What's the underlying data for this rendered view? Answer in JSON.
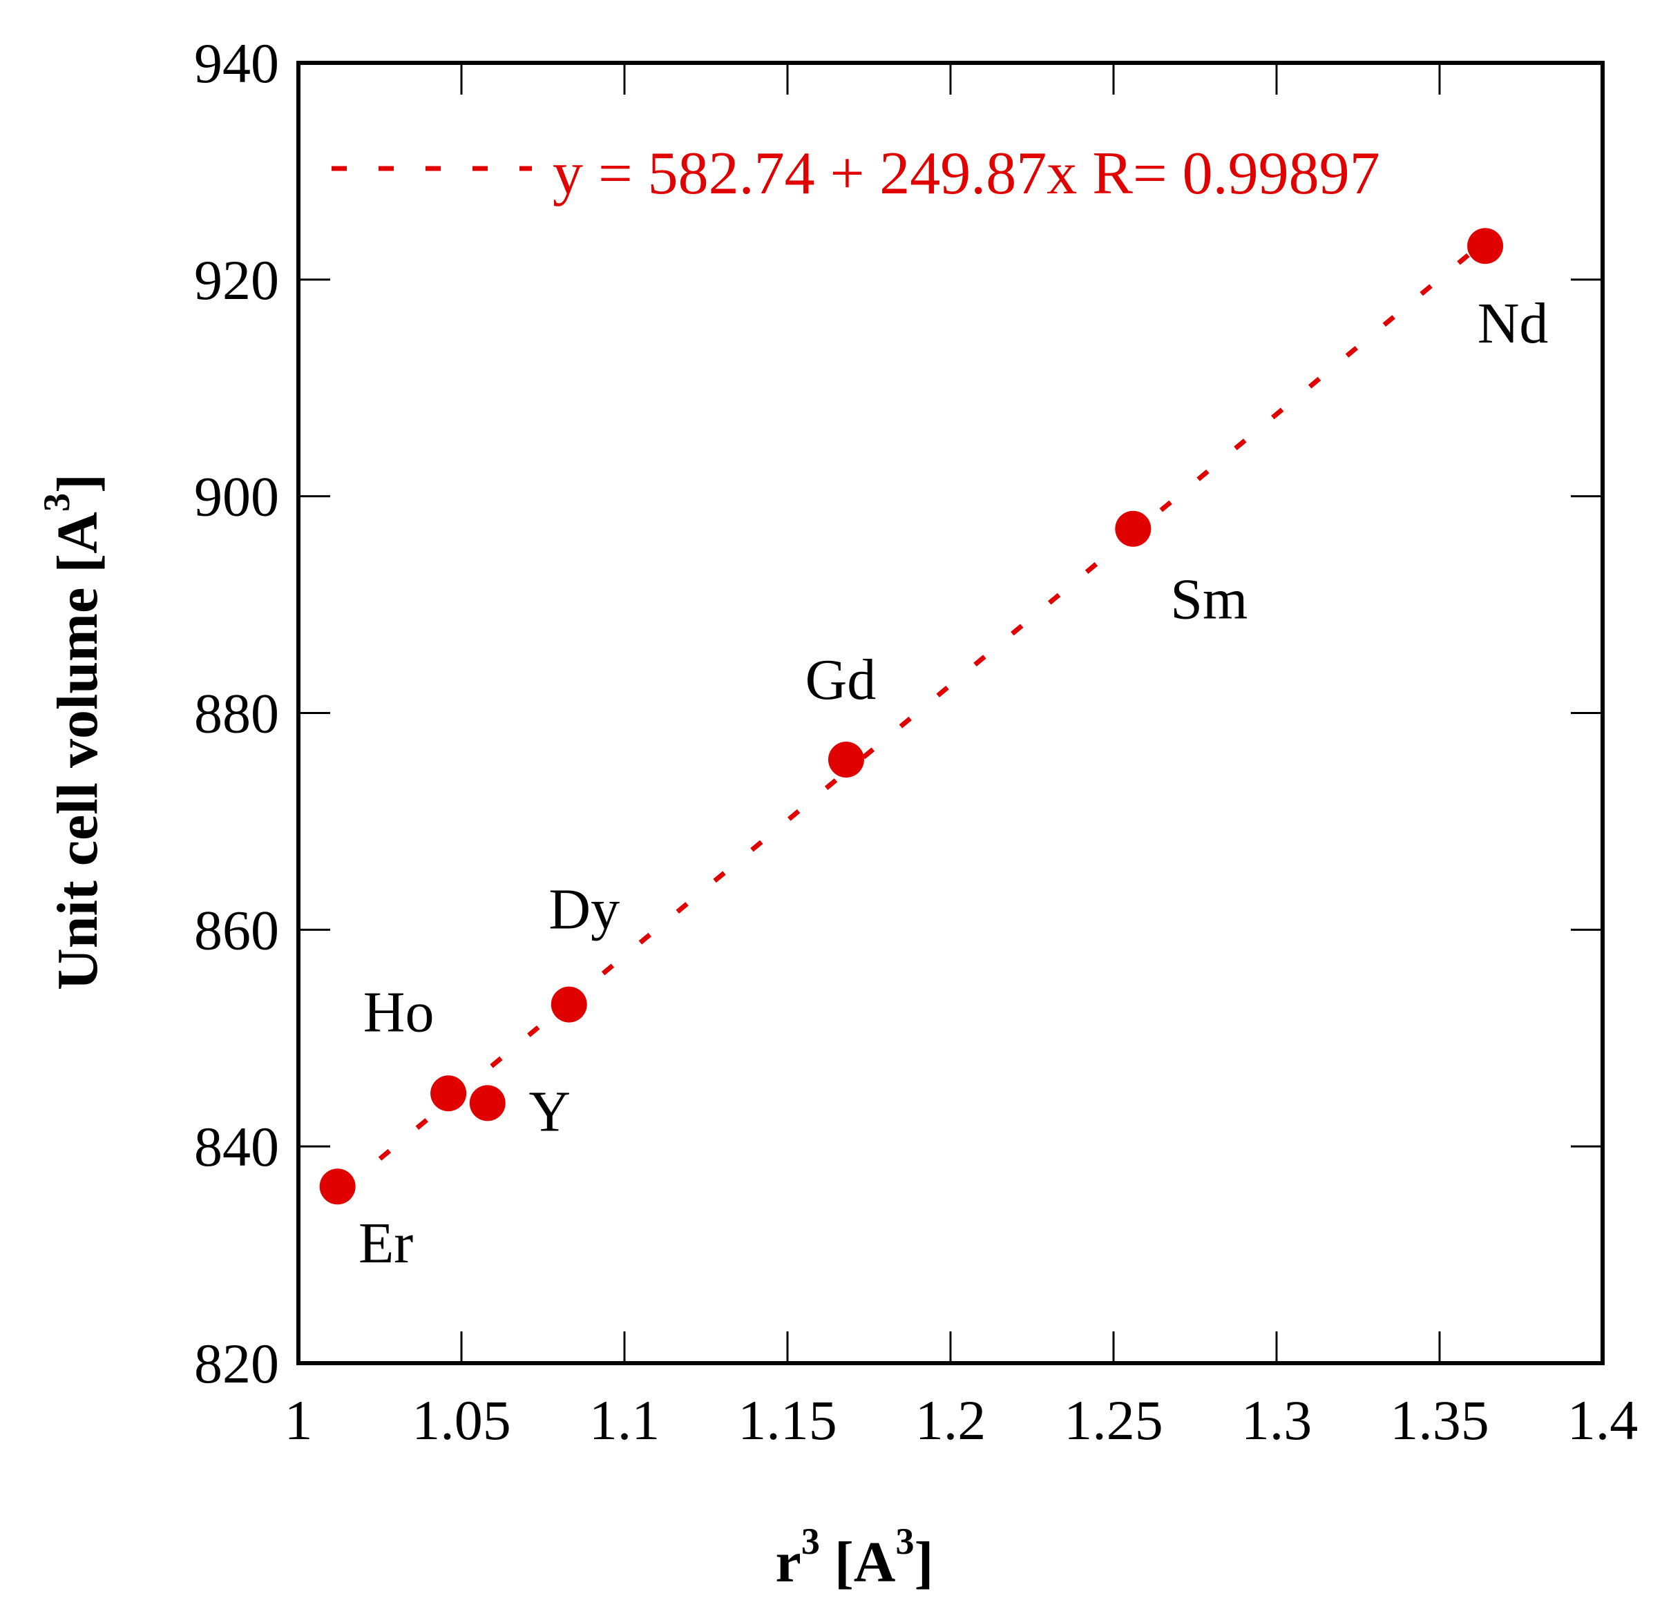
{
  "chart_data": {
    "type": "scatter",
    "title": "",
    "xlabel": "r",
    "xlabel_sup": "3",
    "xlabel_unit": " [A",
    "xlabel_unit_sup": "3",
    "xlabel_close": "]",
    "ylabel": "Unit cell volume [A",
    "ylabel_sup": "3",
    "ylabel_close": "]",
    "xlim": [
      1.0,
      1.4
    ],
    "ylim": [
      820,
      940
    ],
    "xticks": [
      1.0,
      1.05,
      1.1,
      1.15,
      1.2,
      1.25,
      1.3,
      1.35,
      1.4
    ],
    "xtick_labels": [
      "1",
      "1.05",
      "1.1",
      "1.15",
      "1.2",
      "1.25",
      "1.3",
      "1.35",
      "1.4"
    ],
    "yticks": [
      820,
      840,
      860,
      880,
      900,
      920,
      940
    ],
    "ytick_labels": [
      "820",
      "840",
      "860",
      "880",
      "900",
      "920",
      "940"
    ],
    "grid": false,
    "color": "#e00000",
    "series": [
      {
        "name": "Unit cell volume",
        "points": [
          {
            "label": "Er",
            "x": 1.012,
            "y": 836.3
          },
          {
            "label": "Ho",
            "x": 1.046,
            "y": 844.9
          },
          {
            "label": "Y",
            "x": 1.058,
            "y": 844.0
          },
          {
            "label": "Dy",
            "x": 1.083,
            "y": 853.1
          },
          {
            "label": "Gd",
            "x": 1.168,
            "y": 875.7
          },
          {
            "label": "Sm",
            "x": 1.256,
            "y": 897.0
          },
          {
            "label": "Nd",
            "x": 1.364,
            "y": 923.1
          }
        ]
      }
    ],
    "fit": {
      "intercept": 582.74,
      "slope": 249.87,
      "x_range": [
        1.025,
        1.36
      ],
      "legend": "y = 582.74 + 249.87x   R= 0.99897",
      "legend_position": "top-left"
    }
  }
}
